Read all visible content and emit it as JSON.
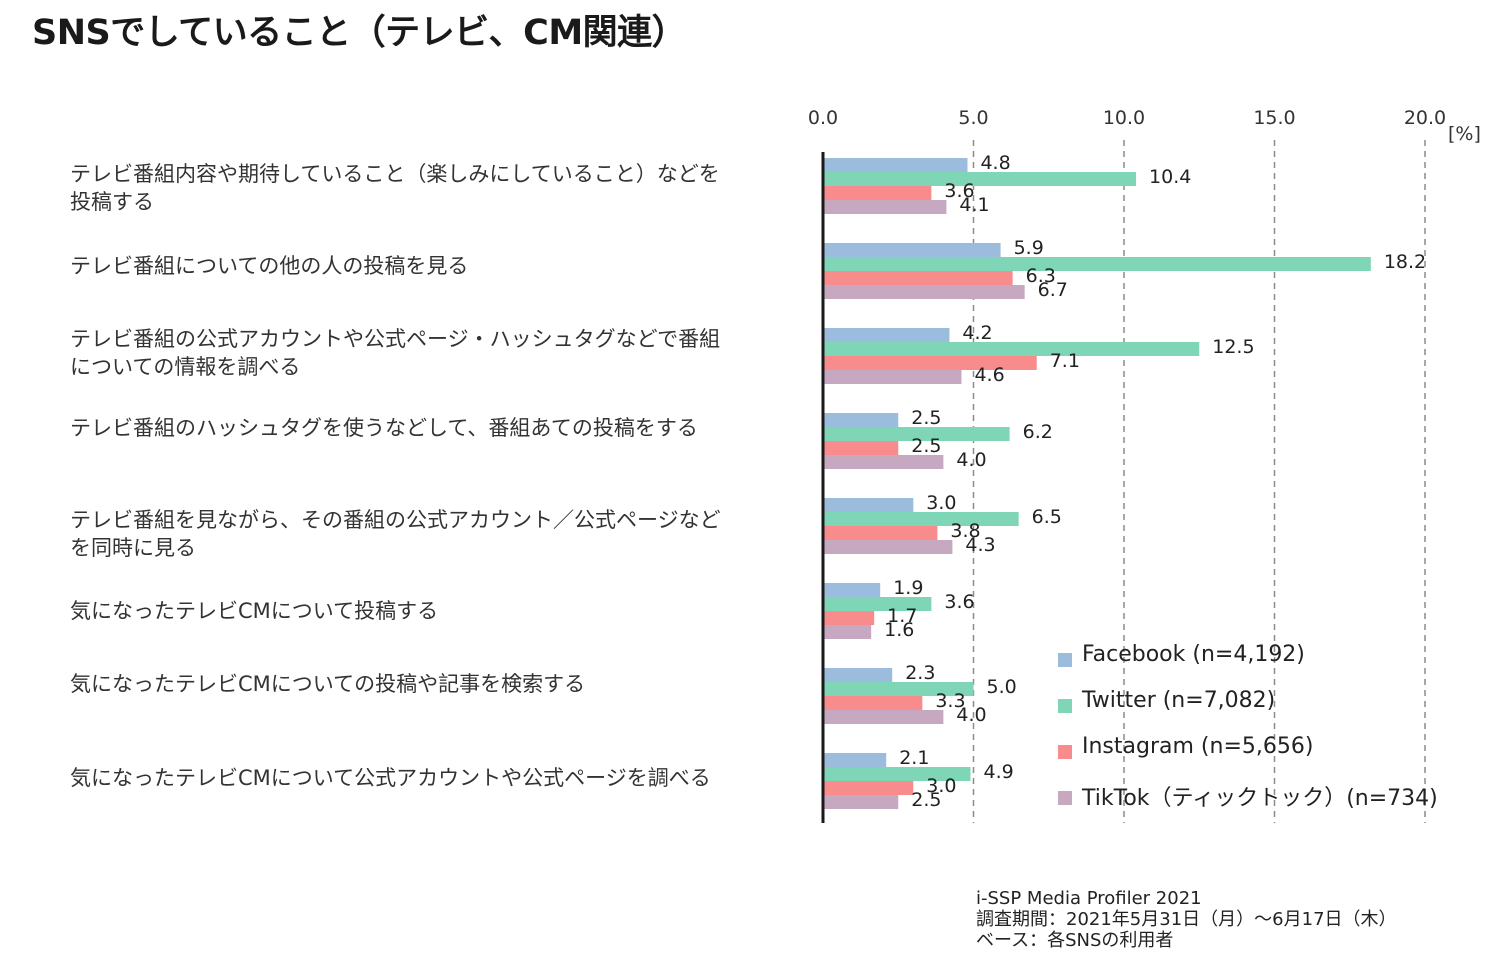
{
  "chart_data": {
    "type": "bar",
    "orientation": "horizontal",
    "title": "SNSでしていること（テレビ、CM関連）",
    "xlim": [
      0,
      20
    ],
    "x_ticks": [
      "0.0",
      "5.0",
      "10.0",
      "15.0",
      "20.0"
    ],
    "x_unit": "[%]",
    "grid": "vertical dashed",
    "legend_position": "bottom-right",
    "categories": [
      [
        "テレビ番組内容や期待していること（楽しみにしていること）などを",
        "投稿する"
      ],
      [
        "テレビ番組についての他の人の投稿を見る"
      ],
      [
        "テレビ番組の公式アカウントや公式ページ・ハッシュタグなどで番組",
        "についての情報を調べる"
      ],
      [
        "テレビ番組のハッシュタグを使うなどして、番組あての投稿をする"
      ],
      [
        "テレビ番組を見ながら、その番組の公式アカウント／公式ページなど",
        "を同時に見る"
      ],
      [
        "気になったテレビCMについて投稿する"
      ],
      [
        "気になったテレビCMについての投稿や記事を検索する"
      ],
      [
        "気になったテレビCMについて公式アカウントや公式ページを調べる"
      ]
    ],
    "series": [
      {
        "name": "Facebook (n=4,192)",
        "color": "#9bbcdc",
        "values": [
          4.8,
          5.9,
          4.2,
          2.5,
          3.0,
          1.9,
          2.3,
          2.1
        ],
        "labels": [
          "4.8",
          "5.9",
          "4.2",
          "2.5",
          "3.0",
          "1.9",
          "2.3",
          "2.1"
        ]
      },
      {
        "name": "Twitter (n=7,082)",
        "color": "#7fd6b7",
        "values": [
          10.4,
          18.2,
          12.5,
          6.2,
          6.5,
          3.6,
          5.0,
          4.9
        ],
        "labels": [
          "10.4",
          "18.2",
          "12.5",
          "6.2",
          "6.5",
          "3.6",
          "5.0",
          "4.9"
        ]
      },
      {
        "name": "Instagram (n=5,656)",
        "color": "#f88b8b",
        "values": [
          3.6,
          6.3,
          7.1,
          2.5,
          3.8,
          1.7,
          3.3,
          3.0
        ],
        "labels": [
          "3.6",
          "6.3",
          "7.1",
          "2.5",
          "3.8",
          "1.7",
          "3.3",
          "3.0"
        ]
      },
      {
        "name": "TikTok（ティックトック）(n=734)",
        "color": "#c7a8c1",
        "values": [
          4.1,
          6.7,
          4.6,
          4.0,
          4.3,
          1.6,
          4.0,
          2.5
        ],
        "labels": [
          "4.1",
          "6.7",
          "4.6",
          "4.0",
          "4.3",
          "1.6",
          "4.0",
          "2.5"
        ]
      }
    ],
    "source_note": [
      "i-SSP Media Profiler 2021",
      "調査期間：2021年5月31日（月）～6月17日（木）",
      "ベース：各SNSの利用者"
    ]
  }
}
